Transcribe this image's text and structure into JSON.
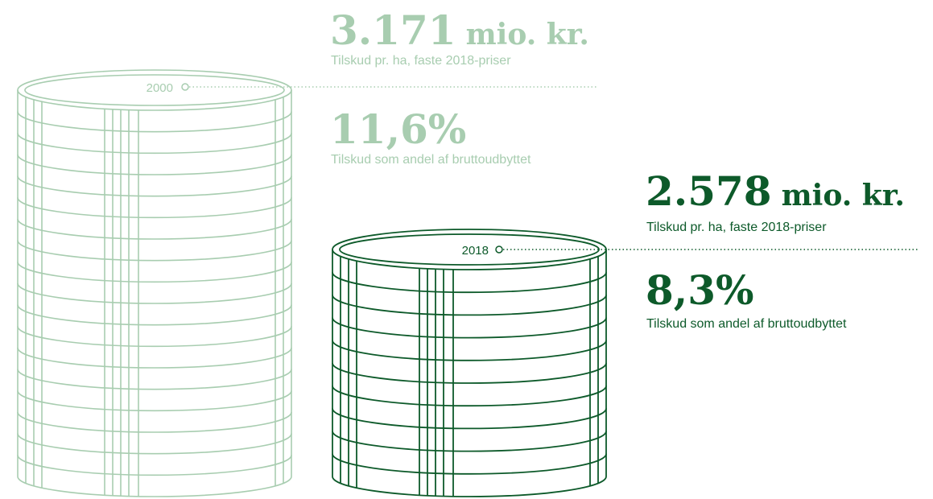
{
  "items": [
    {
      "year": "2000",
      "amount": "3.171",
      "unit": "mio. kr.",
      "amount_caption": "Tilskud pr. ha, faste 2018-priser",
      "share": "11,6%",
      "share_caption": "Tilskud som andel af bruttoudbyttet"
    },
    {
      "year": "2018",
      "amount": "2.578",
      "unit": "mio. kr.",
      "amount_caption": "Tilskud pr. ha, faste 2018-priser",
      "share": "8,3%",
      "share_caption": "Tilskud som andel af bruttoudbyttet"
    }
  ]
}
